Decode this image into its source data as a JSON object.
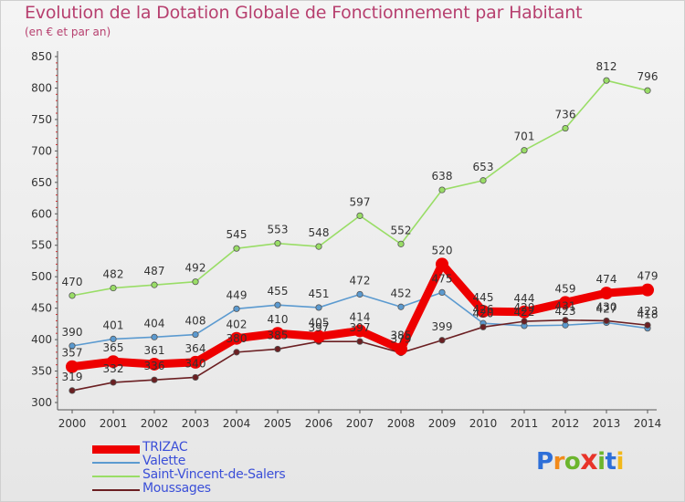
{
  "title": "Evolution de la Dotation Globale de Fonctionnement par Habitant",
  "subtitle": "(en € et par an)",
  "brand": {
    "text": "Proxiti",
    "letter_colors": [
      "#2e6fd8",
      "#f28a1a",
      "#6cb52d",
      "#e8342a",
      "#6cb52d",
      "#2e6fd8",
      "#f2b81a"
    ]
  },
  "chart_data": {
    "type": "line",
    "title": "Evolution de la Dotation Globale de Fonctionnement par Habitant",
    "subtitle": "(en € et par an)",
    "xlabel": "",
    "ylabel": "",
    "x": [
      "2000",
      "2001",
      "2002",
      "2003",
      "2004",
      "2005",
      "2006",
      "2007",
      "2008",
      "2009",
      "2010",
      "2011",
      "2012",
      "2013",
      "2014"
    ],
    "yticks": [
      "300",
      "350",
      "400",
      "450",
      "500",
      "550",
      "600",
      "650",
      "700",
      "750",
      "800",
      "850"
    ],
    "ylim": [
      300,
      850
    ],
    "grid": false,
    "legend_position": "bottom-left",
    "series": [
      {
        "name": "TRIZAC",
        "color": "#ee0000",
        "emphasis": "thick",
        "values": [
          357,
          365,
          361,
          364,
          402,
          410,
          405,
          414,
          385,
          520,
          445,
          444,
          459,
          474,
          479
        ],
        "labels": [
          "357",
          "365",
          "361",
          "364",
          "402",
          "410",
          "405",
          "414",
          "385",
          "520",
          "445",
          "444",
          "459",
          "474",
          "479"
        ]
      },
      {
        "name": "Valette",
        "color": "#5b9ad0",
        "emphasis": "normal",
        "values": [
          390,
          401,
          404,
          408,
          449,
          455,
          451,
          472,
          452,
          475,
          426,
          422,
          423,
          427,
          418
        ],
        "labels": [
          "390",
          "401",
          "404",
          "408",
          "449",
          "455",
          "451",
          "472",
          "452",
          "475",
          "426",
          "422",
          "423",
          "427",
          "418"
        ]
      },
      {
        "name": "Saint-Vincent-de-Salers",
        "color": "#99dd66",
        "emphasis": "normal",
        "values": [
          470,
          482,
          487,
          492,
          545,
          553,
          548,
          597,
          552,
          638,
          653,
          701,
          736,
          812,
          796
        ],
        "labels": [
          "470",
          "482",
          "487",
          "492",
          "545",
          "553",
          "548",
          "597",
          "552",
          "638",
          "653",
          "701",
          "736",
          "812",
          "796"
        ]
      },
      {
        "name": "Moussages",
        "color": "#6b1f22",
        "emphasis": "normal",
        "values": [
          319,
          332,
          336,
          340,
          380,
          385,
          397,
          397,
          379,
          399,
          420,
          429,
          431,
          430,
          423
        ],
        "labels": [
          "319",
          "332",
          "336",
          "340",
          "380",
          "385",
          "397",
          "397",
          "379",
          "399",
          "420",
          "429",
          "431",
          "430",
          "423"
        ]
      }
    ]
  }
}
